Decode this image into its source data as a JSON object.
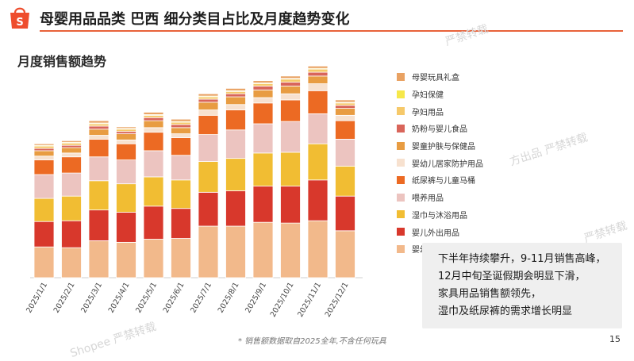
{
  "header": {
    "title": "母婴用品品类 巴西 细分类目占比及月度趋势变化",
    "subtitle": "月度销售额趋势"
  },
  "watermarks": [
    "严禁转载",
    "方出品 严禁转载",
    "严禁转载",
    "Shopee 严禁转载"
  ],
  "chart_data": {
    "type": "bar",
    "stacked": true,
    "categories": [
      "2025/1/1",
      "2025/2/1",
      "2025/3/1",
      "2025/4/1",
      "2025/5/1",
      "2025/6/1",
      "2025/7/1",
      "2025/8/1",
      "2025/9/1",
      "2025/10/1",
      "2025/11/1",
      "2025/12/1"
    ],
    "legend_position": "right",
    "grid": false,
    "series": [
      {
        "name": "婴幼童家具床品",
        "color": "#f2b98b",
        "values": [
          40,
          39,
          48,
          46,
          50,
          51,
          67,
          67,
          72,
          71,
          74,
          61
        ]
      },
      {
        "name": "婴儿外出用品",
        "color": "#d8382c",
        "values": [
          33,
          35,
          40,
          39,
          43,
          39,
          44,
          46,
          47,
          48,
          53,
          45
        ]
      },
      {
        "name": "湿巾与沐浴用品",
        "color": "#f1bd33",
        "values": [
          30,
          32,
          38,
          37,
          38,
          37,
          40,
          42,
          43,
          44,
          47,
          39
        ]
      },
      {
        "name": "喂养用品",
        "color": "#ecc4c0",
        "values": [
          31,
          30,
          31,
          31,
          34,
          32,
          35,
          37,
          38,
          40,
          39,
          35
        ]
      },
      {
        "name": "纸尿裤与儿童马桶",
        "color": "#ec6a23",
        "values": [
          19,
          21,
          23,
          21,
          24,
          23,
          25,
          26,
          27,
          28,
          30,
          24
        ]
      },
      {
        "name": "婴幼儿居家防护用品",
        "color": "#f7e1cf",
        "values": [
          5,
          5,
          5,
          5,
          6,
          5,
          7,
          7,
          7,
          8,
          9,
          7
        ]
      },
      {
        "name": "婴童护肤与保健品",
        "color": "#e89c42",
        "values": [
          7,
          7,
          8,
          8,
          9,
          8,
          10,
          10,
          10,
          10,
          10,
          9
        ]
      },
      {
        "name": "奶粉与婴儿食品",
        "color": "#d9655a",
        "values": [
          3,
          3,
          4,
          3,
          4,
          4,
          4,
          4,
          5,
          5,
          5,
          4
        ]
      },
      {
        "name": "孕妇用品",
        "color": "#f6c96a",
        "values": [
          3,
          3,
          3,
          3,
          3,
          3,
          3,
          3,
          3,
          4,
          4,
          3
        ]
      },
      {
        "name": "孕妇保健",
        "color": "#f6e84a",
        "values": [
          1,
          1,
          1,
          1,
          1,
          1,
          1,
          1,
          1,
          1,
          1,
          1
        ]
      },
      {
        "name": "母婴玩具礼盒",
        "color": "#e9a263",
        "values": [
          2,
          2,
          3,
          2,
          3,
          3,
          3,
          3,
          3,
          3,
          3,
          3
        ]
      }
    ]
  },
  "callout": {
    "lines": [
      "下半年持续攀升，9-11月销售高峰，",
      "12月中旬圣诞假期会明显下滑，",
      "家具用品销售额领先，",
      "湿巾及纸尿裤的需求增长明显"
    ]
  },
  "footnote": "* 销售额数据取自2025全年,不含任何玩具",
  "page_number": "15"
}
